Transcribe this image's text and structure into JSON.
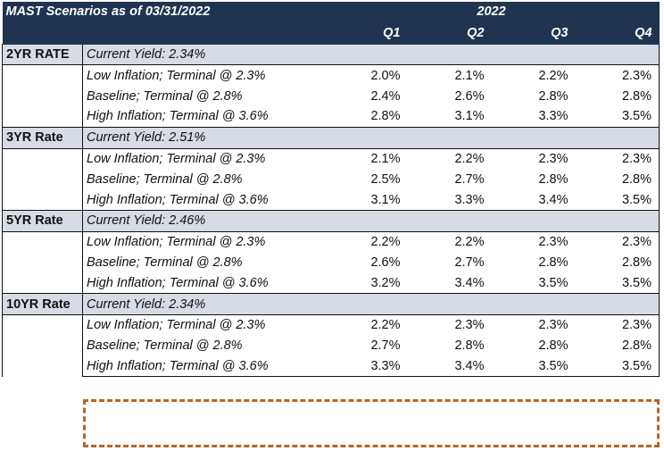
{
  "header": {
    "title": "MAST Scenarios as of 03/31/2022",
    "year": "2022",
    "quarters": [
      "Q1",
      "Q2",
      "Q3",
      "Q4"
    ]
  },
  "sections": [
    {
      "label": "2YR RATE",
      "current_yield": "Current Yield: 2.34%",
      "rows": [
        {
          "scenario": "Low Inflation; Terminal @ 2.3%",
          "values": [
            "2.0%",
            "2.1%",
            "2.2%",
            "2.3%"
          ]
        },
        {
          "scenario": "Baseline; Terminal @ 2.8%",
          "values": [
            "2.4%",
            "2.6%",
            "2.8%",
            "2.8%"
          ]
        },
        {
          "scenario": "High Inflation; Terminal @ 3.6%",
          "values": [
            "2.8%",
            "3.1%",
            "3.3%",
            "3.5%"
          ]
        }
      ]
    },
    {
      "label": "3YR Rate",
      "current_yield": "Current Yield: 2.51%",
      "rows": [
        {
          "scenario": "Low Inflation; Terminal @ 2.3%",
          "values": [
            "2.1%",
            "2.2%",
            "2.3%",
            "2.3%"
          ]
        },
        {
          "scenario": "Baseline; Terminal @ 2.8%",
          "values": [
            "2.5%",
            "2.7%",
            "2.8%",
            "2.8%"
          ]
        },
        {
          "scenario": "High Inflation; Terminal @ 3.6%",
          "values": [
            "3.1%",
            "3.3%",
            "3.4%",
            "3.5%"
          ]
        }
      ]
    },
    {
      "label": "5YR Rate",
      "current_yield": "Current Yield: 2.46%",
      "rows": [
        {
          "scenario": "Low Inflation; Terminal @ 2.3%",
          "values": [
            "2.2%",
            "2.2%",
            "2.3%",
            "2.3%"
          ]
        },
        {
          "scenario": "Baseline; Terminal @ 2.8%",
          "values": [
            "2.6%",
            "2.7%",
            "2.8%",
            "2.8%"
          ]
        },
        {
          "scenario": "High Inflation; Terminal @ 3.6%",
          "values": [
            "3.2%",
            "3.4%",
            "3.5%",
            "3.5%"
          ]
        }
      ]
    },
    {
      "label": "10YR Rate",
      "current_yield": "Current Yield: 2.34%",
      "rows": [
        {
          "scenario": "Low Inflation; Terminal @ 2.3%",
          "values": [
            "2.2%",
            "2.3%",
            "2.3%",
            "2.3%"
          ]
        },
        {
          "scenario": "Baseline; Terminal @ 2.8%",
          "values": [
            "2.7%",
            "2.8%",
            "2.8%",
            "2.8%"
          ]
        },
        {
          "scenario": "High Inflation; Terminal @ 3.6%",
          "values": [
            "3.3%",
            "3.4%",
            "3.5%",
            "3.5%"
          ]
        }
      ]
    }
  ],
  "colors": {
    "header_bg": "#1f3450",
    "section_bg": "#d6dbe4",
    "highlight_dash": "#b5662a"
  }
}
